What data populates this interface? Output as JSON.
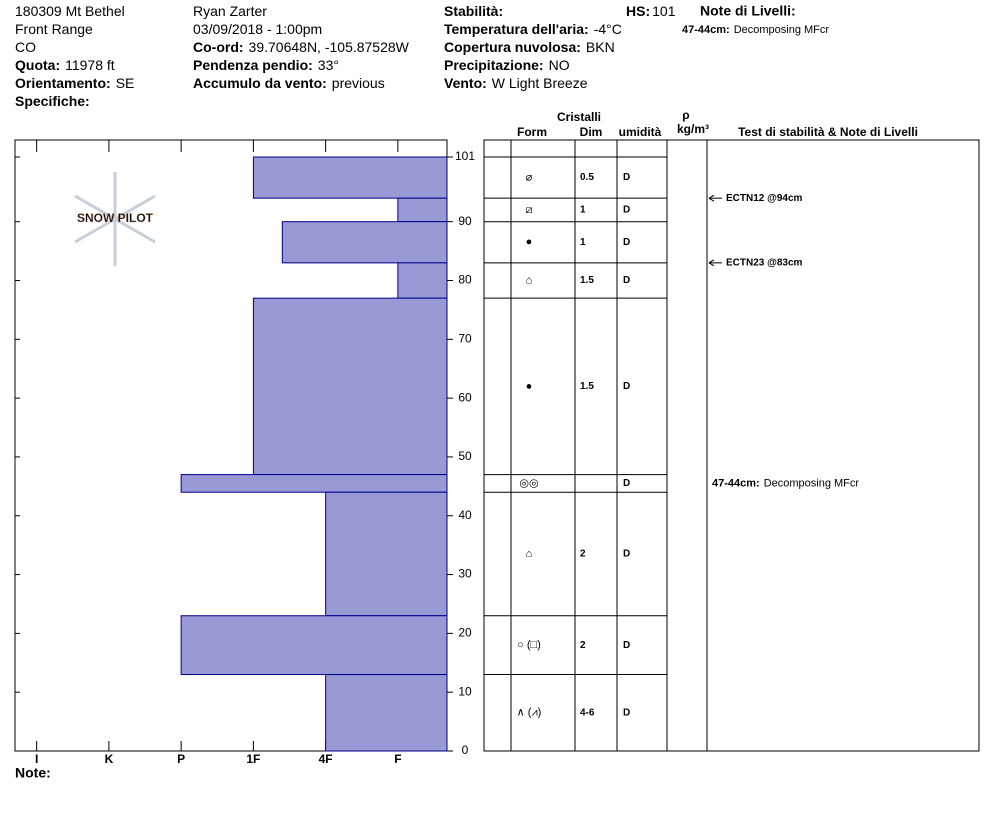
{
  "header": {
    "col1": [
      {
        "text": "180309 Mt Bethel"
      },
      {
        "text": "Front Range"
      },
      {
        "text": "CO"
      },
      {
        "label": "Quota:",
        "value": "11978 ft"
      },
      {
        "label": "Orientamento:",
        "value": "SE"
      },
      {
        "label": "Specifiche:"
      }
    ],
    "col2": [
      {
        "text": "Ryan Zarter"
      },
      {
        "text": "03/09/2018 - 1:00pm"
      },
      {
        "label": "Co-ord:",
        "value": "39.70648N, -105.87528W"
      },
      {
        "label": "Pendenza pendio:",
        "value": "33°"
      },
      {
        "label": "Accumulo da vento:",
        "value": "previous"
      }
    ],
    "col3": [
      {
        "label": "Stabilità:"
      },
      {
        "label": "Temperatura dell'aria:",
        "value": "-4°C"
      },
      {
        "label": "Copertura nuvolosa:",
        "value": "BKN"
      },
      {
        "label": "Precipitazione:",
        "value": "NO"
      },
      {
        "label": "Vento:",
        "value": "W Light Breeze"
      }
    ],
    "hs": {
      "label": "HS:",
      "value": 101
    },
    "notes_title": "Note di Livelli:"
  },
  "footer": {
    "note": "Note:"
  },
  "chart_data": {
    "type": "bar",
    "watermark": "SNOW PILOT",
    "bar_color": "#9999d6",
    "ylim": [
      0,
      101
    ],
    "yticks": [
      0,
      10,
      20,
      30,
      40,
      50,
      60,
      70,
      80,
      90,
      101
    ],
    "xlim": [
      6.3,
      0.32
    ],
    "xticks": [
      {
        "value": 6,
        "label": "I"
      },
      {
        "value": 5,
        "label": "K"
      },
      {
        "value": 4,
        "label": "P"
      },
      {
        "value": 3,
        "label": "1F"
      },
      {
        "value": 2,
        "label": "4F"
      },
      {
        "value": 1,
        "label": "F"
      }
    ],
    "columns": {
      "crystals": "Cristalli",
      "form": "Form",
      "size": "Dim",
      "moisture": "umidità",
      "density": "ρ",
      "density_unit": "kg/m³",
      "tests": "Test di stabilità & Note di Livelli"
    },
    "layers": [
      {
        "top": 101,
        "bottom": 94,
        "hardness": 3,
        "form": "⌀",
        "size": "0.5",
        "moisture": "D"
      },
      {
        "top": 94,
        "bottom": 90,
        "hardness": 1,
        "form": "⧄",
        "size": "1",
        "moisture": "D"
      },
      {
        "top": 90,
        "bottom": 83,
        "hardness": 2.6,
        "form": "●",
        "size": "1",
        "moisture": "D"
      },
      {
        "top": 83,
        "bottom": 77,
        "hardness": 1,
        "form": "⌂",
        "size": "1.5",
        "moisture": "D"
      },
      {
        "top": 77,
        "bottom": 47,
        "hardness": 3,
        "form": "●",
        "size": "1.5",
        "moisture": "D"
      },
      {
        "top": 47,
        "bottom": 44,
        "hardness": 4,
        "form": "◎◎",
        "moisture": "D"
      },
      {
        "top": 44,
        "bottom": 23,
        "hardness": 2,
        "form": "⌂",
        "size": "2",
        "moisture": "D"
      },
      {
        "top": 23,
        "bottom": 13,
        "hardness": 4,
        "form": "○ (□)",
        "size": "2",
        "moisture": "D"
      },
      {
        "top": 13,
        "bottom": 0,
        "hardness": 2,
        "form": "∧ (⩘)",
        "size": "4-6",
        "moisture": "D"
      }
    ],
    "tests": [
      {
        "label": "ECTN12 @94cm",
        "depth": 94
      },
      {
        "label": "ECTN23 @83cm",
        "depth": 83
      }
    ],
    "notes": [
      {
        "label": "47-44cm:",
        "text": "Decomposing MFcr",
        "top": 47,
        "bottom": 44
      }
    ]
  }
}
